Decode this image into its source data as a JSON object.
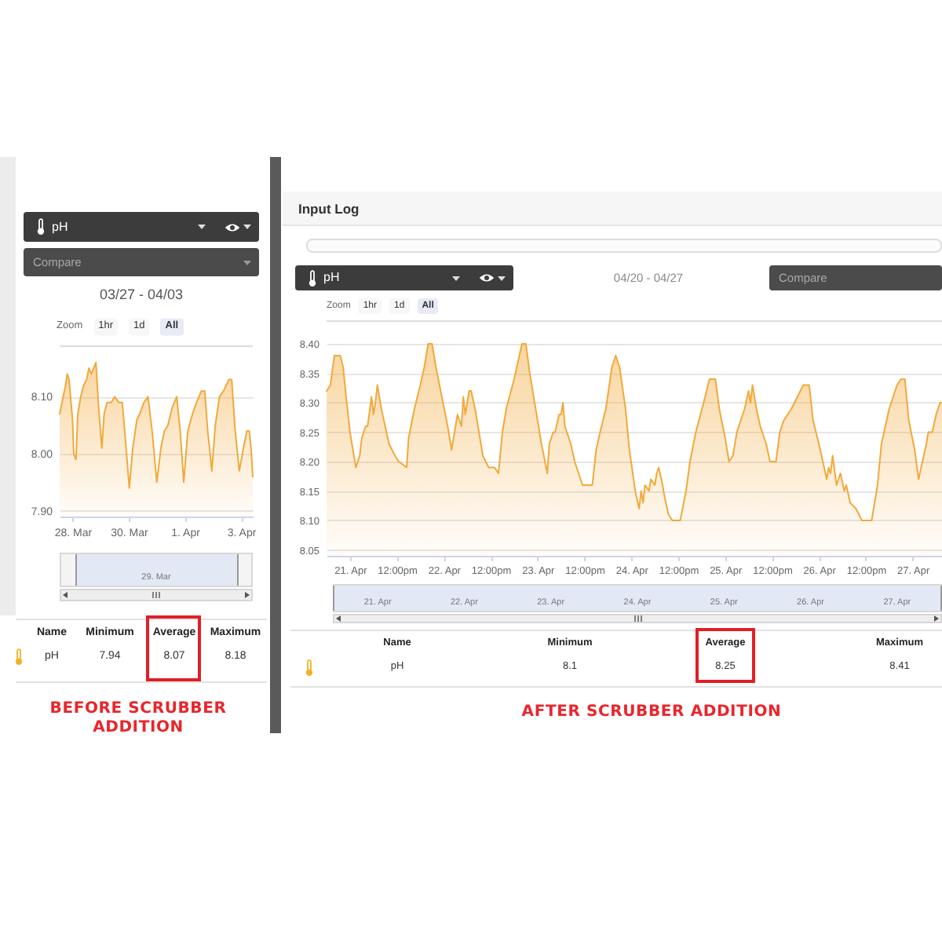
{
  "chart_data": [
    {
      "type": "area",
      "title": "03/27 - 04/03",
      "color": "#f2a93b",
      "grid": "y",
      "x": [
        "--03-27T13:00",
        "--03-27T15:00",
        "--03-27T18:00",
        "--03-27T19:30",
        "--03-27T21:00",
        "--03-28T00:00",
        "--03-28T01:00",
        "--03-28T03:00",
        "--03-28T04:30",
        "--03-28T07:00",
        "--03-28T09:30",
        "--03-28T12:00",
        "--03-28T14:00",
        "--03-28T16:00",
        "--03-28T18:00",
        "--03-28T20:00",
        "--03-28T22:00",
        "--03-29T01:00",
        "--03-29T03:00",
        "--03-29T05:30",
        "--03-29T09:00",
        "--03-29T12:00",
        "--03-29T15:30",
        "--03-29T18:30",
        "--03-29T21:00",
        "--03-30T00:30",
        "--03-30T03:30",
        "--03-30T07:00",
        "--03-30T09:30",
        "--03-30T13:00",
        "--03-30T16:30",
        "--03-30T20:00",
        "--03-31T00:00",
        "--03-31T03:30",
        "--03-31T06:30",
        "--03-31T09:30",
        "--03-31T13:00",
        "--03-31T17:00",
        "--03-31T20:00",
        "--03-31T23:00",
        "--04-01T02:30",
        "--04-01T06:30",
        "--04-01T10:00",
        "--04-01T14:00",
        "--04-01T17:00",
        "--04-01T19:30",
        "--04-01T23:00",
        "--04-02T02:00",
        "--04-02T05:30",
        "--04-02T09:00",
        "--04-02T13:30",
        "--04-02T16:00",
        "--04-02T19:00",
        "--04-02T22:30",
        "--04-03T02:00",
        "--04-03T05:00",
        "--04-03T07:00",
        "--04-03T08:30",
        "--04-03T10:00"
      ],
      "values": [
        8.07,
        8.09,
        8.12,
        8.14,
        8.13,
        8.06,
        8.0,
        7.99,
        8.07,
        8.1,
        8.12,
        8.13,
        8.15,
        8.14,
        8.15,
        8.16,
        8.09,
        8.01,
        8.07,
        8.09,
        8.09,
        8.1,
        8.09,
        8.09,
        8.03,
        7.94,
        8.01,
        8.06,
        8.07,
        8.09,
        8.1,
        8.04,
        7.95,
        8.01,
        8.04,
        8.05,
        8.08,
        8.1,
        8.04,
        7.95,
        8.04,
        8.07,
        8.09,
        8.11,
        8.11,
        8.04,
        7.97,
        8.05,
        8.1,
        8.11,
        8.13,
        8.13,
        8.04,
        7.97,
        8.01,
        8.04,
        8.04,
        8.01,
        7.96
      ],
      "xlim": [
        "--03-27T13:00",
        "--04-03T10:00"
      ],
      "xticks": [
        {
          "value": "--03-28",
          "label": "28. Mar"
        },
        {
          "value": "--03-30",
          "label": "30. Mar"
        },
        {
          "value": "--04-01",
          "label": "1. Apr"
        },
        {
          "value": "--04-03",
          "label": "3. Apr"
        }
      ],
      "ylim": [
        7.89,
        8.19
      ],
      "yticks": [
        {
          "value": 7.9,
          "label": "7.90"
        },
        {
          "value": 8,
          "label": "8.00"
        },
        {
          "value": 8.1,
          "label": "8.10"
        }
      ],
      "annotations": [
        "pH",
        "Compare",
        "Zoom",
        "1hr",
        "1d",
        "All",
        "29. Mar",
        "Name",
        "Minimum",
        "Average",
        "Maximum",
        "pH",
        "7.94",
        "8.07",
        "8.18",
        "BEFORE SCRUBBER ADDITION"
      ]
    },
    {
      "type": "area",
      "title": "Input Log",
      "subtitle": "04/20 - 04/27",
      "color": "#f2a93b",
      "grid": "y",
      "x": [
        "--04-20T18:00",
        "--04-20T19:00",
        "--04-20T20:00",
        "--04-20T21:30",
        "--04-20T22:15",
        "--04-20T23:00",
        "--04-21T00:00",
        "--04-21T01:00",
        "--04-21T01:30",
        "--04-21T02:30",
        "--04-21T03:00",
        "--04-21T04:00",
        "--04-21T04:30",
        "--04-21T05:30",
        "--04-21T06:00",
        "--04-21T06:30",
        "--04-21T07:00",
        "--04-21T08:00",
        "--04-21T09:00",
        "--04-21T10:00",
        "--04-21T11:30",
        "--04-21T12:30",
        "--04-21T14:30",
        "--04-21T15:00",
        "--04-21T16:30",
        "--04-21T18:00",
        "--04-21T19:00",
        "--04-21T20:00",
        "--04-21T21:00",
        "--04-21T22:00",
        "--04-21T23:30",
        "--04-22T01:00",
        "--04-22T02:00",
        "--04-22T03:00",
        "--04-22T03:30",
        "--04-22T04:30",
        "--04-22T05:00",
        "--04-22T05:30",
        "--04-22T06:30",
        "--04-22T07:00",
        "--04-22T08:00",
        "--04-22T09:00",
        "--04-22T10:00",
        "--04-22T11:30",
        "--04-22T13:00",
        "--04-22T14:00",
        "--04-22T15:00",
        "--04-22T16:00",
        "--04-22T18:00",
        "--04-22T20:00",
        "--04-22T21:00",
        "--04-22T22:00",
        "--04-22T23:30",
        "--04-23T01:00",
        "--04-23T02:30",
        "--04-23T03:00",
        "--04-23T04:00",
        "--04-23T04:30",
        "--04-23T05:30",
        "--04-23T06:00",
        "--04-23T06:30",
        "--04-23T07:00",
        "--04-23T08:30",
        "--04-23T09:30",
        "--04-23T11:00",
        "--04-23T11:30",
        "--04-23T14:00",
        "--04-23T15:00",
        "--04-23T16:00",
        "--04-23T17:30",
        "--04-23T19:00",
        "--04-23T20:00",
        "--04-23T21:00",
        "--04-23T22:30",
        "--04-23T23:30",
        "--04-24T01:00",
        "--04-24T02:00",
        "--04-24T02:30",
        "--04-24T03:00",
        "--04-24T03:30",
        "--04-24T04:30",
        "--04-24T05:00",
        "--04-24T06:00",
        "--04-24T06:30",
        "--04-24T07:00",
        "--04-24T08:00",
        "--04-24T08:30",
        "--04-24T09:30",
        "--04-24T10:30",
        "--04-24T11:30",
        "--04-24T12:30",
        "--04-24T14:00",
        "--04-24T15:00",
        "--04-24T16:30",
        "--04-24T18:30",
        "--04-24T20:00",
        "--04-24T21:30",
        "--04-24T22:30",
        "--04-25T00:00",
        "--04-25T01:00",
        "--04-25T02:00",
        "--04-25T03:00",
        "--04-25T04:00",
        "--04-25T05:00",
        "--04-25T06:00",
        "--04-25T06:30",
        "--04-25T07:00",
        "--04-25T08:00",
        "--04-25T09:00",
        "--04-25T10:30",
        "--04-25T11:30",
        "--04-25T13:00",
        "--04-25T14:00",
        "--04-25T15:00",
        "--04-25T16:00",
        "--04-25T17:00",
        "--04-25T18:30",
        "--04-25T20:00",
        "--04-25T21:30",
        "--04-25T22:30",
        "--04-26T00:00",
        "--04-26T01:00",
        "--04-26T02:00",
        "--04-26T02:30",
        "--04-26T03:00",
        "--04-26T03:30",
        "--04-26T04:30",
        "--04-26T05:30",
        "--04-26T06:30",
        "--04-26T07:00",
        "--04-26T08:00",
        "--04-26T09:30",
        "--04-26T11:00",
        "--04-26T11:30",
        "--04-26T13:30",
        "--04-26T15:00",
        "--04-26T16:00",
        "--04-26T18:00",
        "--04-26T20:00",
        "--04-26T21:00",
        "--04-26T22:00",
        "--04-26T23:00",
        "--04-27T00:30",
        "--04-27T01:30",
        "--04-27T02:30",
        "--04-27T03:30",
        "--04-27T04:00",
        "--04-27T05:00",
        "--04-27T06:00",
        "--04-27T07:00",
        "--04-27T07:30"
      ],
      "values": [
        8.32,
        8.33,
        8.38,
        8.38,
        8.36,
        8.31,
        8.25,
        8.21,
        8.19,
        8.21,
        8.24,
        8.26,
        8.26,
        8.31,
        8.28,
        8.3,
        8.33,
        8.29,
        8.26,
        8.23,
        8.21,
        8.2,
        8.19,
        8.24,
        8.29,
        8.33,
        8.36,
        8.4,
        8.4,
        8.36,
        8.31,
        8.26,
        8.22,
        8.26,
        8.28,
        8.26,
        8.31,
        8.28,
        8.32,
        8.32,
        8.29,
        8.25,
        8.21,
        8.19,
        8.19,
        8.18,
        8.25,
        8.29,
        8.34,
        8.4,
        8.4,
        8.35,
        8.29,
        8.23,
        8.18,
        8.23,
        8.25,
        8.25,
        8.28,
        8.28,
        8.3,
        8.26,
        8.23,
        8.2,
        8.17,
        8.16,
        8.16,
        8.22,
        8.25,
        8.29,
        8.36,
        8.38,
        8.36,
        8.29,
        8.22,
        8.15,
        8.12,
        8.15,
        8.13,
        8.16,
        8.15,
        8.17,
        8.16,
        8.18,
        8.19,
        8.16,
        8.14,
        8.11,
        8.1,
        8.1,
        8.1,
        8.15,
        8.2,
        8.25,
        8.3,
        8.34,
        8.34,
        8.29,
        8.24,
        8.2,
        8.21,
        8.25,
        8.27,
        8.29,
        8.32,
        8.3,
        8.33,
        8.29,
        8.26,
        8.23,
        8.2,
        8.2,
        8.25,
        8.27,
        8.28,
        8.29,
        8.31,
        8.33,
        8.33,
        8.27,
        8.23,
        8.2,
        8.17,
        8.19,
        8.18,
        8.21,
        8.16,
        8.18,
        8.15,
        8.16,
        8.13,
        8.12,
        8.1,
        8.1,
        8.1,
        8.16,
        8.23,
        8.29,
        8.33,
        8.34,
        8.34,
        8.27,
        8.22,
        8.17,
        8.2,
        8.23,
        8.25,
        8.25,
        8.28,
        8.3,
        8.3
      ],
      "xlim": [
        "--04-20T18:00",
        "--04-27T07:30"
      ],
      "xticks": [
        {
          "value": "--04-21",
          "label": "21. Apr"
        },
        {
          "value": "--04-21T12:00",
          "label": "12:00pm"
        },
        {
          "value": "--04-22",
          "label": "22. Apr"
        },
        {
          "value": "--04-22T12:00",
          "label": "12:00pm"
        },
        {
          "value": "--04-23",
          "label": "23. Apr"
        },
        {
          "value": "--04-23T12:00",
          "label": "12:00pm"
        },
        {
          "value": "--04-24",
          "label": "24. Apr"
        },
        {
          "value": "--04-24T12:00",
          "label": "12:00pm"
        },
        {
          "value": "--04-25",
          "label": "25. Apr"
        },
        {
          "value": "--04-25T12:00",
          "label": "12:00pm"
        },
        {
          "value": "--04-26",
          "label": "26. Apr"
        },
        {
          "value": "--04-26T12:00",
          "label": "12:00pm"
        },
        {
          "value": "--04-27",
          "label": "27. Apr"
        }
      ],
      "ylim": [
        8.04,
        8.44
      ],
      "yticks": [
        8.05,
        {
          "value": 8.1,
          "label": "8.10"
        },
        8.15,
        {
          "value": 8.2,
          "label": "8.20"
        },
        8.25,
        {
          "value": 8.3,
          "label": "8.30"
        },
        8.35,
        {
          "value": 8.4,
          "label": "8.40"
        }
      ],
      "annotations": [
        "pH",
        "Compare",
        "Zoom",
        "1hr",
        "1d",
        "All",
        "21. Apr",
        "22. Apr",
        "23. Apr",
        "24. Apr",
        "25. Apr",
        "26. Apr",
        "27. Apr",
        "Name",
        "Minimum",
        "Average",
        "Maximum",
        "pH",
        "8.1",
        "8.25",
        "8.41",
        "AFTER SCRUBBER ADDITION"
      ]
    }
  ]
}
